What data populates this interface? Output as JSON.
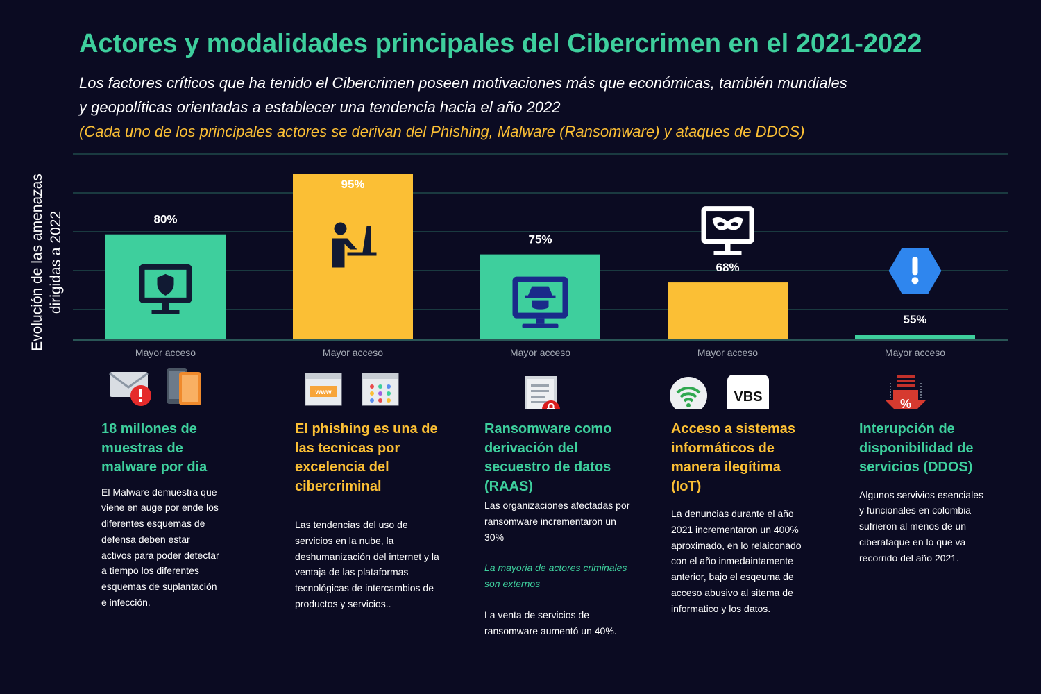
{
  "header": {
    "title": "Actores y modalidades principales del Cibercrimen en el 2021-2022",
    "subtitle": "Los factores críticos que ha tenido el Cibercrimen poseen motivaciones más que económicas, también mundiales y geopolíticas orientadas a establecer una tendencia hacia el año 2022",
    "note": "(Cada uno de los principales actores se derivan del Phishing, Malware (Ransomware) y ataques de DDOS)"
  },
  "chart_data": {
    "type": "bar",
    "ylabel": "Evolución de las amenazas dirigidas a 2022",
    "categories": [
      "Mayor acceso",
      "Mayor acceso",
      "Mayor acceso",
      "Mayor acceso",
      "Mayor acceso"
    ],
    "values": [
      80,
      95,
      75,
      68,
      55
    ],
    "value_labels": [
      "80%",
      "95%",
      "75%",
      "68%",
      "55%"
    ],
    "bar_colors": [
      "#3ecf9d",
      "#fbbf35",
      "#3ecf9d",
      "#fbbf35",
      "#3ecf9d"
    ],
    "bar_icons": [
      "monitor-shield-icon",
      "person-at-computer-icon",
      "monitor-hacker-icon",
      "monitor-mask-icon",
      "alert-hexagon-icon"
    ],
    "grid": true
  },
  "columns": [
    {
      "heading": "18 millones de muestras de malware por dia",
      "icons": [
        "email-alert-icon",
        "mobile-devices-icon"
      ],
      "paragraphs": [
        "El Malware demuestra que viene en auge por ende los diferentes esquemas de defensa deben estar activos para poder detectar a tiempo los diferentes esquemas de suplantación e infección."
      ]
    },
    {
      "heading": "El phishing es una de las tecnicas por excelencia del cibercriminal",
      "icons": [
        "browser-www-icon",
        "browser-apps-icon"
      ],
      "paragraphs": [
        "Las tendencias del uso de servicios en la nube, la deshumanización del internet y la ventaja de las plataformas tecnológicas de intercambios de productos y servicios.."
      ]
    },
    {
      "heading": "Ransomware como derivación del secuestro de datos (RAAS)",
      "icons": [
        "locked-document-icon"
      ],
      "paragraphs": [
        "Las organizaciones afectadas por ransomware incrementaron un 30%"
      ],
      "accent": "La mayoria de actores criminales son externos",
      "extra": "La venta de servicios de ransomware aumentó un 40%."
    },
    {
      "heading": "Acceso a sistemas informáticos de manera ilegítima (IoT)",
      "icons": [
        "wifi-icon",
        "vbs-icon"
      ],
      "vbs_label": "VBS",
      "paragraphs": [
        "La denuncias durante el año 2021 incrementaron un 400% aproximado, en lo relaiconado con el año inmedaintamente anterior, bajo el esqeuma de acceso abusivo al sitema de informatico y los datos."
      ]
    },
    {
      "heading": "Interupción de disponibilidad de servicios (DDOS)",
      "icons": [
        "download-percent-icon"
      ],
      "percent_symbol": "%",
      "paragraphs": [
        "Algunos servivios esenciales y funcionales en colombia sufrieron al menos de un ciberataque en lo que va recorrido del año 2021."
      ]
    }
  ]
}
